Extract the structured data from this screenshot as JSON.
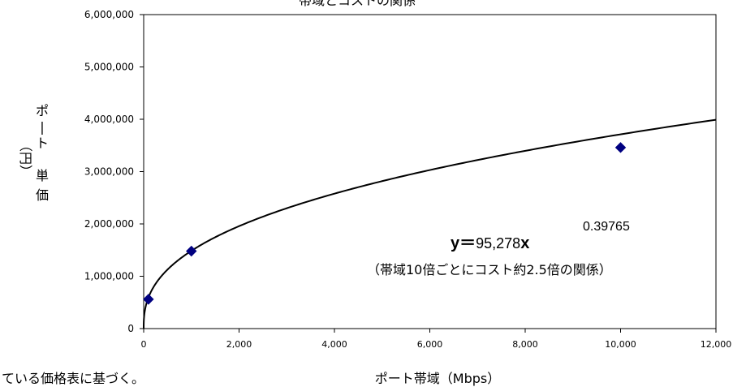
{
  "chart_data": {
    "type": "scatter",
    "title": "帯域とコストの関係",
    "xlabel": "ポート帯域（Mbps）",
    "ylabel_chars": [
      "ポ",
      "ー",
      "ト",
      "単",
      "価"
    ],
    "ylabel_unit": "（円）",
    "xlim": [
      0,
      12000
    ],
    "ylim": [
      0,
      6000000
    ],
    "x_ticks": [
      "0",
      "2,000",
      "4,000",
      "6,000",
      "8,000",
      "10,000",
      "12,000"
    ],
    "y_ticks": [
      "0",
      "1,000,000",
      "2,000,000",
      "3,000,000",
      "4,000,000",
      "5,000,000",
      "6,000,000"
    ],
    "points": [
      {
        "x": 100,
        "y": 560000
      },
      {
        "x": 1000,
        "y": 1480000
      },
      {
        "x": 10000,
        "y": 3460000
      }
    ],
    "trendline": {
      "type": "power",
      "a": 95278,
      "b": 0.39765
    },
    "equation": {
      "lhs": "y＝",
      "coef": "95,278",
      "var": "x",
      "exponent": "0.39765"
    },
    "note": "（帯域10倍ごとにコスト約2.5倍の関係）",
    "colors": {
      "marker": "#000080",
      "line": "#000000"
    }
  },
  "footnote": "ている価格表に基づく。"
}
